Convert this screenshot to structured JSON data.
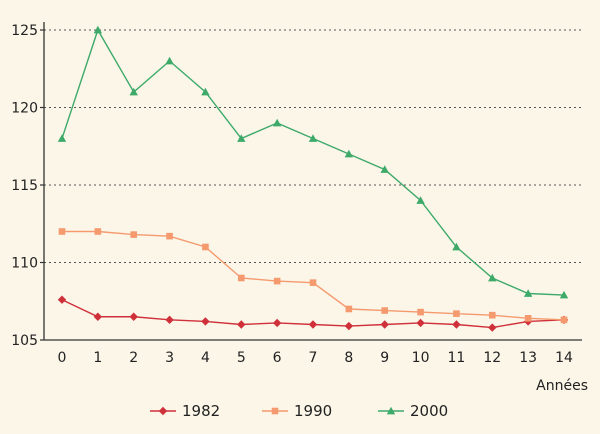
{
  "chart_data": {
    "type": "line",
    "xlabel": "Années",
    "ylabel": "",
    "title": "",
    "x": [
      0,
      1,
      2,
      3,
      4,
      5,
      6,
      7,
      8,
      9,
      10,
      11,
      12,
      13,
      14
    ],
    "ylim": [
      105,
      125
    ],
    "yticks": [
      105,
      110,
      115,
      120,
      125
    ],
    "grid": true,
    "legend_placement": "bottom",
    "series": [
      {
        "name": "1982",
        "color": "#d0303a",
        "marker": "diamond",
        "values": [
          107.6,
          106.5,
          106.5,
          106.3,
          106.2,
          106.0,
          106.1,
          106.0,
          105.9,
          106.0,
          106.1,
          106.0,
          105.8,
          106.2,
          106.3
        ]
      },
      {
        "name": "1990",
        "color": "#f59a6e",
        "marker": "square",
        "values": [
          112.0,
          112.0,
          111.8,
          111.7,
          111.0,
          109.0,
          108.8,
          108.7,
          107.0,
          106.9,
          106.8,
          106.7,
          106.6,
          106.4,
          106.3
        ]
      },
      {
        "name": "2000",
        "color": "#3daa6a",
        "marker": "triangle",
        "values": [
          118,
          125,
          121,
          123,
          121,
          118,
          119,
          118,
          117,
          116,
          114,
          111,
          109,
          108,
          107.9
        ]
      }
    ]
  }
}
